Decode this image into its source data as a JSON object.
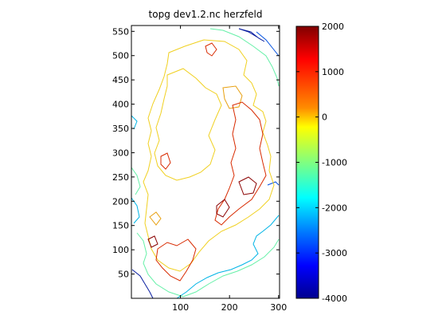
{
  "chart_data": {
    "type": "contour",
    "title": "topg dev1.2.nc herzfeld",
    "xlabel": "",
    "ylabel": "",
    "x_ticks": [
      100,
      200,
      300
    ],
    "y_ticks": [
      50,
      100,
      150,
      200,
      250,
      300,
      350,
      400,
      450,
      500,
      550
    ],
    "xlim": [
      0,
      302
    ],
    "ylim": [
      0,
      562
    ],
    "grid": false,
    "colormap": "jet",
    "colorbar": {
      "ticks": [
        2000,
        1000,
        0,
        -1000,
        -2000,
        -3000,
        -4000
      ],
      "range": [
        -4000,
        2000
      ]
    },
    "contour_levels": [
      {
        "value": -3000,
        "color": "#0a1ea0"
      },
      {
        "value": -2500,
        "color": "#0050e0"
      },
      {
        "value": -1500,
        "color": "#00b4e6"
      },
      {
        "value": -800,
        "color": "#66f0a8"
      },
      {
        "value": 0,
        "color": "#f0d020"
      },
      {
        "value": 500,
        "color": "#e8a010"
      },
      {
        "value": 1200,
        "color": "#d82a00"
      },
      {
        "value": 1800,
        "color": "#8a0000"
      }
    ]
  }
}
